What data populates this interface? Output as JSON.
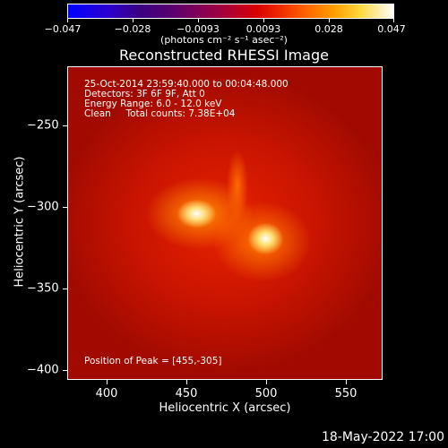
{
  "colorbar": {
    "tick_labels": [
      "−0.047",
      "−0.028",
      "−0.0093",
      "0.0093",
      "0.028",
      "0.047"
    ],
    "units": "(photons cm⁻² s⁻¹ asec⁻²)"
  },
  "plot": {
    "title": "Reconstructed RHESSI Image",
    "info_line1": "25-Oct-2014 23:59:40.000 to 00:04:48.000",
    "info_line2": "Detectors: 3F 6F 9F, Att 0",
    "info_line3": "Energy Range: 6.0 - 12.0 keV",
    "info_line4": "Clean     Total counts: 7.38E+04",
    "peak_text": "Position of Peak = [455,-305]",
    "x_axis_title": "Heliocentric X (arcsec)",
    "y_axis_title": "Heliocentric Y (arcsec)",
    "x_ticks": [
      "400",
      "450",
      "500",
      "550"
    ],
    "y_ticks": [
      "−250",
      "−300",
      "−350",
      "−400"
    ]
  },
  "footer": {
    "timestamp": "18-May-2022 17:00"
  }
}
